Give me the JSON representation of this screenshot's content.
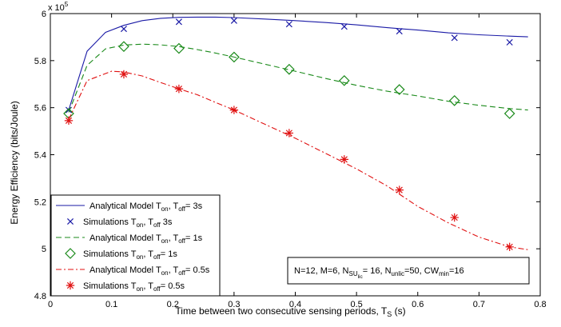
{
  "chart_data": {
    "type": "line",
    "title": "",
    "xlabel": "Time between two consecutive sensing periods, T",
    "xlabel_sub": "S",
    "xlabel_suffix": " (s)",
    "ylabel": "Energy  Efficiency (bits/Joule)",
    "y_multiplier": {
      "base": "x 10",
      "exponent": "5"
    },
    "xlim": [
      0,
      0.8
    ],
    "ylim": [
      4.8,
      6.0
    ],
    "xticks": [
      "0",
      "0.1",
      "0.2",
      "0.3",
      "0.4",
      "0.5",
      "0.6",
      "0.7",
      "0.8"
    ],
    "yticks": [
      "4.8",
      "5",
      "5.2",
      "5.4",
      "5.6",
      "5.8",
      "6"
    ],
    "grid": false,
    "legend_position": "bottom-left",
    "series": [
      {
        "name": "Analytical Model T",
        "sub": "on",
        "mid": ", T",
        "sub2": "off",
        "tail": "= 3s",
        "kind": "line",
        "dash": "solid",
        "color": "#1a1aa6",
        "x": [
          0.03,
          0.06,
          0.09,
          0.12,
          0.15,
          0.18,
          0.21,
          0.24,
          0.27,
          0.3,
          0.35,
          0.4,
          0.45,
          0.5,
          0.55,
          0.6,
          0.65,
          0.7,
          0.75,
          0.78
        ],
        "y": [
          5.59,
          5.84,
          5.92,
          5.95,
          5.97,
          5.98,
          5.984,
          5.985,
          5.985,
          5.983,
          5.977,
          5.97,
          5.962,
          5.952,
          5.94,
          5.93,
          5.918,
          5.91,
          5.904,
          5.901
        ]
      },
      {
        "name": "Simulations T",
        "sub": "on",
        "mid": ", T",
        "sub2": "off",
        "tail": " 3s",
        "kind": "marker",
        "marker": "x",
        "color": "#1a1aa6",
        "x": [
          0.03,
          0.12,
          0.21,
          0.3,
          0.39,
          0.48,
          0.57,
          0.66,
          0.75
        ],
        "y": [
          5.59,
          5.935,
          5.965,
          5.97,
          5.955,
          5.945,
          5.925,
          5.897,
          5.878
        ]
      },
      {
        "name": "Analytical Model T",
        "sub": "on",
        "mid": ", T",
        "sub2": "off",
        "tail": "= 1s",
        "kind": "line",
        "dash": "dashed",
        "color": "#1a8a1a",
        "x": [
          0.03,
          0.06,
          0.09,
          0.12,
          0.15,
          0.18,
          0.21,
          0.24,
          0.27,
          0.3,
          0.35,
          0.4,
          0.45,
          0.5,
          0.55,
          0.6,
          0.65,
          0.7,
          0.75,
          0.78
        ],
        "y": [
          5.58,
          5.78,
          5.85,
          5.866,
          5.87,
          5.867,
          5.86,
          5.847,
          5.832,
          5.815,
          5.785,
          5.755,
          5.724,
          5.695,
          5.67,
          5.65,
          5.627,
          5.61,
          5.596,
          5.59
        ]
      },
      {
        "name": "Simulations T",
        "sub": "on",
        "mid": ", T",
        "sub2": "off",
        "tail": "= 1s",
        "kind": "marker",
        "marker": "diamond",
        "color": "#1a8a1a",
        "x": [
          0.03,
          0.12,
          0.21,
          0.3,
          0.39,
          0.48,
          0.57,
          0.66,
          0.75
        ],
        "y": [
          5.575,
          5.86,
          5.852,
          5.815,
          5.763,
          5.715,
          5.677,
          5.63,
          5.575
        ]
      },
      {
        "name": "Analytical Model T",
        "sub": "on",
        "mid": ", T",
        "sub2": "off",
        "tail": "= 0.5s",
        "kind": "line",
        "dash": "dashdot",
        "color": "#e01010",
        "x": [
          0.03,
          0.06,
          0.09,
          0.1,
          0.12,
          0.15,
          0.18,
          0.21,
          0.24,
          0.27,
          0.3,
          0.35,
          0.4,
          0.45,
          0.5,
          0.55,
          0.6,
          0.65,
          0.7,
          0.75,
          0.78
        ],
        "y": [
          5.55,
          5.715,
          5.745,
          5.755,
          5.752,
          5.735,
          5.707,
          5.68,
          5.655,
          5.622,
          5.59,
          5.53,
          5.47,
          5.405,
          5.34,
          5.267,
          5.18,
          5.11,
          5.05,
          5.008,
          4.996
        ]
      },
      {
        "name": "Simulations T",
        "sub": "on",
        "mid": ", T",
        "sub2": "off",
        "tail": "= 0.5s",
        "kind": "marker",
        "marker": "star",
        "color": "#e01010",
        "x": [
          0.03,
          0.12,
          0.21,
          0.3,
          0.39,
          0.48,
          0.57,
          0.66,
          0.75
        ],
        "y": [
          5.545,
          5.742,
          5.68,
          5.59,
          5.492,
          5.38,
          5.25,
          5.133,
          5.008
        ]
      }
    ],
    "annotation": {
      "parts": [
        {
          "t": "N=12, M=6, N"
        },
        {
          "t": "SU",
          "sub": true
        },
        {
          "t": "lic",
          "subsub": true
        },
        {
          "t": "= 16, N"
        },
        {
          "t": "unlic",
          "sub": true
        },
        {
          "t": "=50, CW"
        },
        {
          "t": "min",
          "sub": true
        },
        {
          "t": "=16"
        }
      ]
    }
  }
}
